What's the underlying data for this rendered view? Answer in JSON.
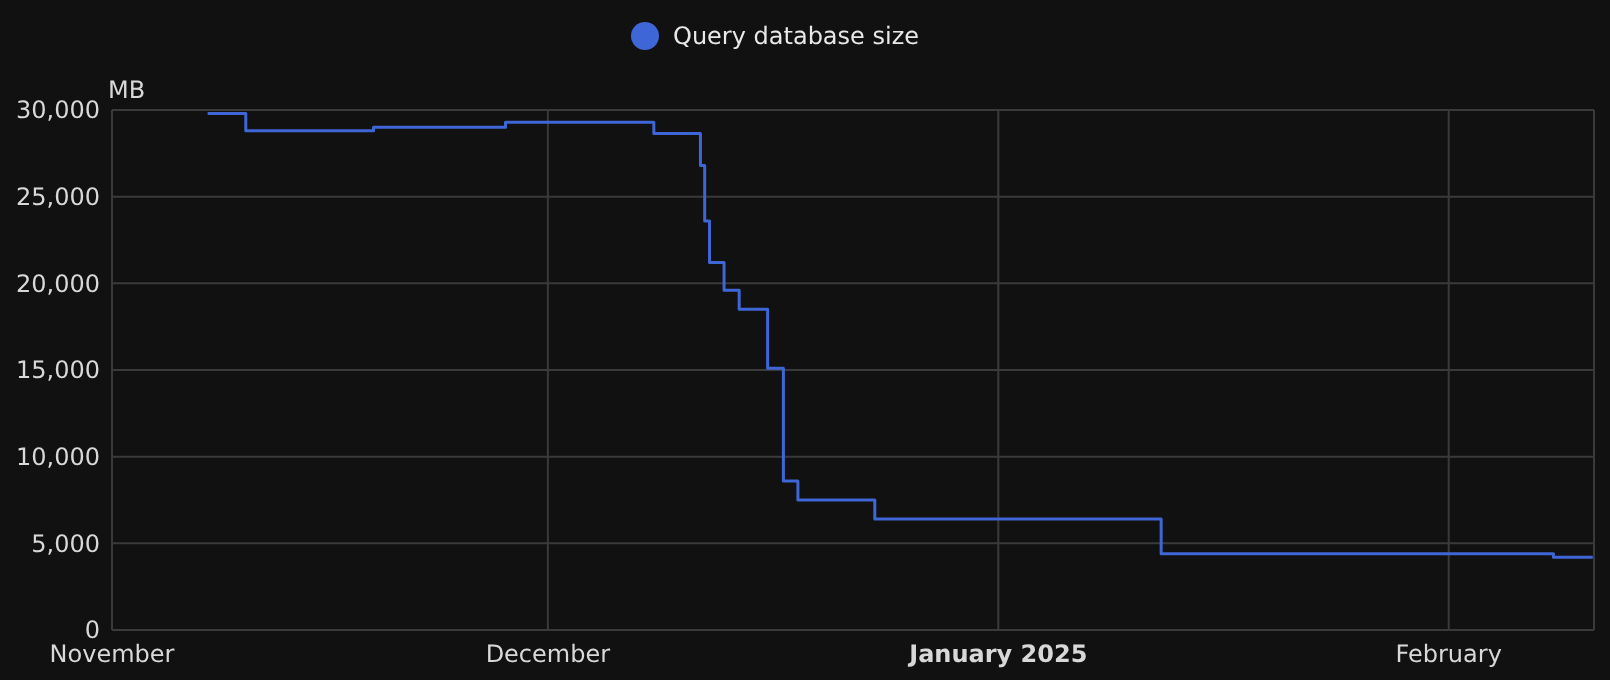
{
  "chart_data": {
    "type": "step",
    "ylabel": "MB",
    "legend": "top",
    "grid": true,
    "marker": "none",
    "line_style": "solid",
    "xlim": [
      "2024-11-01",
      "2025-02-11"
    ],
    "xticks": [
      {
        "value": "2024-11-01",
        "label": "November"
      },
      {
        "value": "2024-12-01",
        "label": "December"
      },
      {
        "value": "2025-01-01",
        "label": "January 2025"
      },
      {
        "value": "2025-02-01",
        "label": "February"
      }
    ],
    "ylim": [
      0,
      30000
    ],
    "yticks": [
      {
        "value": 0,
        "label": "0"
      },
      {
        "value": 5000,
        "label": "5,000"
      },
      {
        "value": 10000,
        "label": "10,000"
      },
      {
        "value": 15000,
        "label": "15,000"
      },
      {
        "value": 20000,
        "label": "20,000"
      },
      {
        "value": 25000,
        "label": "25,000"
      },
      {
        "value": 30000,
        "label": "30,000"
      }
    ],
    "x": [
      "2024-11-07T14:00",
      "2024-11-10T05:00",
      "2024-11-19T00:00",
      "2024-11-28T02:00",
      "2024-12-08T07:00",
      "2024-12-11T12:00",
      "2024-12-11T19:00",
      "2024-12-12T03:00",
      "2024-12-13T03:00",
      "2024-12-14T04:00",
      "2024-12-16T03:00",
      "2024-12-17T05:00",
      "2024-12-18T05:00",
      "2024-12-23T12:00",
      "2025-01-12T05:00",
      "2025-02-08T05:00",
      "2025-02-10T22:00"
    ],
    "series": [
      {
        "name": "Query database size",
        "color": "#3f66d6",
        "values": [
          29800,
          28800,
          29000,
          29300,
          28650,
          26800,
          23600,
          21200,
          19600,
          18500,
          15100,
          8600,
          7500,
          6400,
          4400,
          4200,
          4200
        ]
      }
    ]
  }
}
